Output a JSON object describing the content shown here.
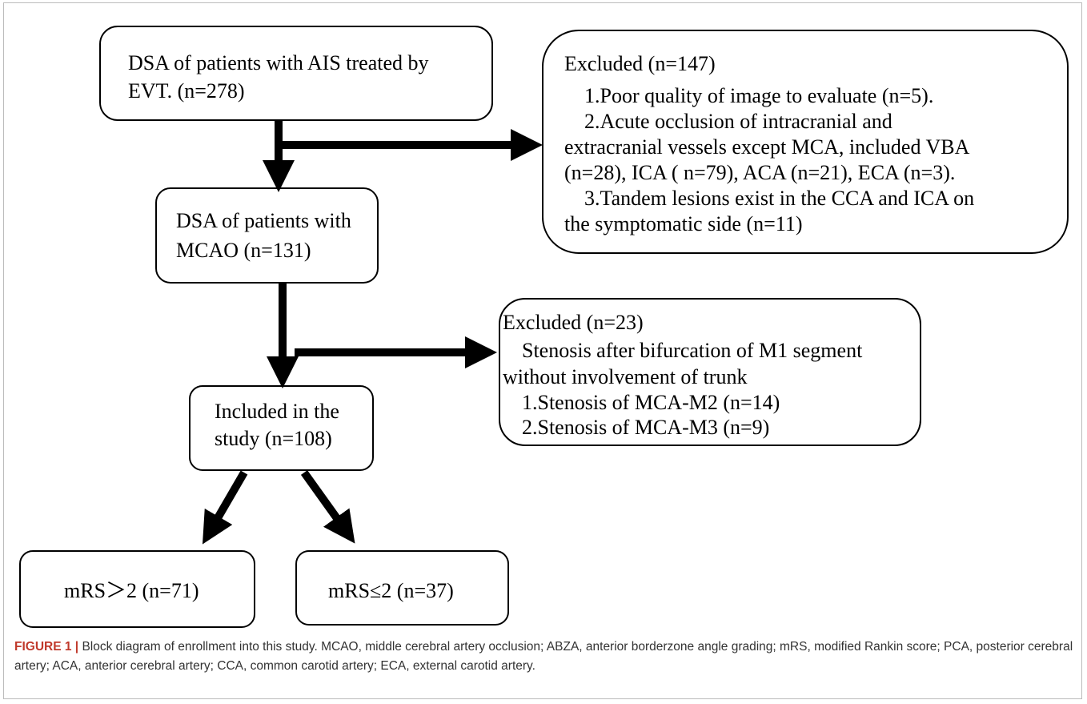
{
  "nodes": [
    {
      "lines": [
        "DSA of patients with AIS treated by",
        "EVT. (n=278)"
      ]
    },
    {
      "lines": [
        "Excluded (n=147)",
        "1.Poor quality of image to evaluate (n=5).",
        "2.Acute occlusion of intracranial and",
        "extracranial vessels except MCA, included VBA",
        "(n=28), ICA ( n=79), ACA (n=21), ECA (n=3).",
        "3.Tandem lesions exist in the CCA and ICA on",
        "the symptomatic side (n=11)"
      ]
    },
    {
      "lines": [
        "DSA of patients with",
        "MCAO (n=131)"
      ]
    },
    {
      "lines": [
        "Excluded (n=23)",
        "Stenosis after bifurcation of M1 segment",
        "without involvement of trunk",
        "1.Stenosis of MCA-M2 (n=14)",
        "2.Stenosis of MCA-M3 (n=9)"
      ]
    },
    {
      "lines": [
        "Included in the",
        "study (n=108)"
      ]
    },
    {
      "lines": [
        "mRS＞2 (n=71)"
      ]
    },
    {
      "lines": [
        "mRS≤2 (n=37)"
      ]
    }
  ],
  "caption": {
    "label": "FIGURE 1 |",
    "text": "Block diagram of enrollment into this study. MCAO, middle cerebral artery occlusion; ABZA, anterior borderzone angle grading; mRS, modified Rankin score; PCA, posterior cerebral artery; ACA, anterior cerebral artery; CCA, common carotid artery; ECA, external carotid artery."
  }
}
